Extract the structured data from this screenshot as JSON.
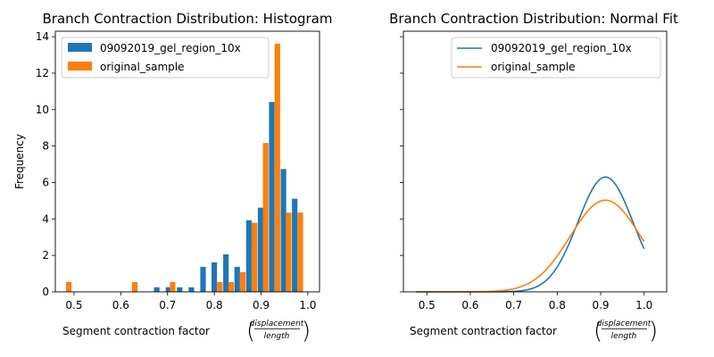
{
  "chart_data": [
    {
      "type": "bar",
      "title": "Branch Contraction Distribution: Histogram",
      "xlabel": "Segment contraction factor",
      "xlabel_fraction": {
        "numerator": "displacement",
        "denominator": "length"
      },
      "ylabel": "Frequency",
      "xlim": [
        0.46,
        1.025
      ],
      "ylim": [
        0,
        14.3
      ],
      "xticks": [
        "0.5",
        "0.6",
        "0.7",
        "0.8",
        "0.9",
        "1.0"
      ],
      "yticks": [
        "0",
        "2",
        "4",
        "6",
        "8",
        "10",
        "12",
        "14"
      ],
      "legend_position": "top-left",
      "bin_width": 0.02458,
      "series": [
        {
          "name": "09092019_gel_region_10x",
          "color": "#1f77b4",
          "bins": [
            0.671,
            0.696,
            0.72,
            0.745,
            0.77,
            0.794,
            0.819,
            0.843,
            0.868,
            0.893,
            0.917,
            0.942,
            0.966,
            0.991
          ],
          "values": [
            0.25,
            0.25,
            0.25,
            0.25,
            1.37,
            1.62,
            2.06,
            1.37,
            3.93,
            4.62,
            10.42,
            6.74,
            5.11,
            null
          ]
        },
        {
          "name": "original_sample",
          "color": "#ff7f0e",
          "bins": [
            0.483,
            0.624,
            0.705,
            0.806,
            0.83,
            0.855,
            0.88,
            0.904,
            0.929,
            0.953,
            0.978
          ],
          "values": [
            0.54,
            0.54,
            0.54,
            0.54,
            0.54,
            1.08,
            3.79,
            8.17,
            13.62,
            4.35,
            4.35
          ]
        }
      ]
    },
    {
      "type": "line",
      "title": "Branch Contraction Distribution: Normal Fit",
      "xlabel": "Segment contraction factor",
      "xlabel_fraction": {
        "numerator": "displacement",
        "denominator": "length"
      },
      "xlim": [
        0.446,
        1.052
      ],
      "ylim": [
        0,
        14.3
      ],
      "xticks": [
        "0.5",
        "0.6",
        "0.7",
        "0.8",
        "0.9",
        "1.0"
      ],
      "legend_position": "top-right",
      "series": [
        {
          "name": "09092019_gel_region_10x",
          "color": "#1f77b4",
          "mean": 0.911,
          "sd": 0.0635,
          "peak": 6.3
        },
        {
          "name": "original_sample",
          "color": "#ff7f0e",
          "mean": 0.911,
          "sd": 0.081,
          "peak": 5.03
        }
      ],
      "x_range": [
        0.475,
        1.0
      ]
    }
  ]
}
